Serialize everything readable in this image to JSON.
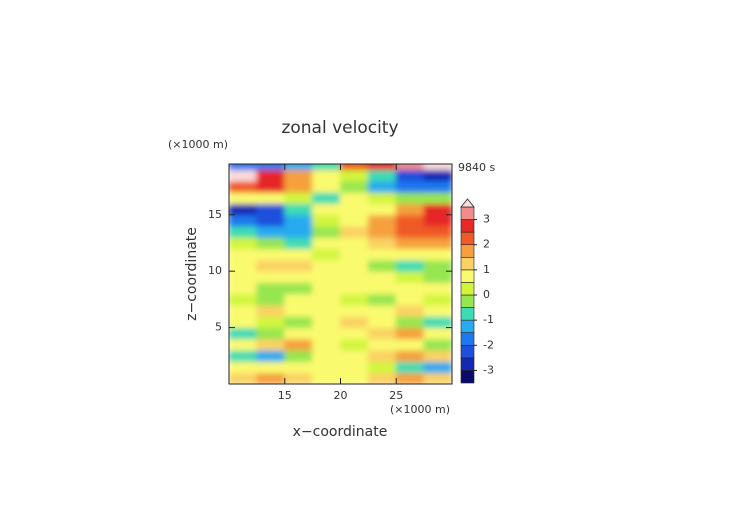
{
  "chart_data": {
    "type": "contour",
    "title": "zonal velocity",
    "time_label": "9840 s",
    "y_unit_label": "(×1000 m)",
    "x_unit_label": "(×1000 m)",
    "xlabel": "x−coordinate",
    "ylabel": "z−coordinate",
    "xlim": [
      10,
      30
    ],
    "ylim": [
      0,
      19.5
    ],
    "xticks": [
      15,
      20,
      25
    ],
    "yticks": [
      5,
      10,
      15
    ],
    "x": [
      11.25,
      13.75,
      16.25,
      18.75,
      21.25,
      23.75,
      26.25,
      28.75
    ],
    "z": [
      0.5,
      1.5,
      2.5,
      3.5,
      4.5,
      5.5,
      6.5,
      7.5,
      8.5,
      9.5,
      10.5,
      11.5,
      12.5,
      13.5,
      14.5,
      15.5,
      16.5,
      17.5,
      18.5,
      19.5
    ],
    "values": [
      [
        1,
        1.5,
        1,
        0.5,
        0.5,
        1,
        1.5,
        1
      ],
      [
        0.5,
        0.5,
        0.5,
        0.5,
        0.5,
        0,
        -1,
        -1.5
      ],
      [
        -1,
        -1.5,
        -0.5,
        0.5,
        0.5,
        1,
        1.5,
        1
      ],
      [
        0.5,
        1,
        1.5,
        0.5,
        0,
        0.5,
        0.5,
        -0.5
      ],
      [
        -1,
        -0.5,
        0.5,
        0.5,
        0.5,
        1,
        1.5,
        0.5
      ],
      [
        0.5,
        0,
        -0.5,
        0.5,
        1,
        0.5,
        -0.5,
        -1
      ],
      [
        0.5,
        1,
        0.5,
        0.5,
        0.5,
        0.5,
        1,
        0.5
      ],
      [
        0,
        -0.5,
        0.5,
        0.5,
        0,
        -0.5,
        0.5,
        0
      ],
      [
        0.5,
        -0.5,
        -0.5,
        0.5,
        0.5,
        0.5,
        0.5,
        0.5
      ],
      [
        0.5,
        0.5,
        0.5,
        0.5,
        0.5,
        0.5,
        0,
        -0.5
      ],
      [
        0.5,
        1,
        1,
        0.5,
        0.5,
        -0.5,
        -1,
        -0.5
      ],
      [
        0.5,
        0.5,
        0.5,
        0,
        0.5,
        0.5,
        0.5,
        0.5
      ],
      [
        0,
        -0.5,
        -1,
        0.5,
        0.5,
        1,
        1.5,
        1.5
      ],
      [
        -1,
        -1.5,
        -1.5,
        -0.5,
        1,
        1.5,
        2,
        2
      ],
      [
        -2,
        -2.5,
        -1.5,
        0,
        0.5,
        1.5,
        2,
        2.5
      ],
      [
        -3,
        -2.5,
        -1,
        0.5,
        0.5,
        0.5,
        1.5,
        2.5
      ],
      [
        0.5,
        0.5,
        0,
        -1,
        0.5,
        0,
        -0.5,
        -0.5
      ],
      [
        2,
        2.5,
        1.5,
        0.5,
        -0.5,
        -1.5,
        -2,
        -2
      ],
      [
        3.5,
        2.5,
        1.5,
        0.5,
        0,
        -1,
        -2.5,
        -3
      ],
      [
        -2,
        -2,
        -1.5,
        -1,
        2,
        2.5,
        3,
        3.5
      ]
    ],
    "levels": [
      -3.5,
      -3,
      -2.5,
      -2,
      -1.5,
      -1,
      -0.5,
      0,
      0.5,
      1,
      1.5,
      2,
      2.5,
      3,
      3.5
    ],
    "colors": [
      "#0a0a6e",
      "#1428b4",
      "#1e50dc",
      "#1e78f0",
      "#28aaf0",
      "#3cdcb4",
      "#96e650",
      "#d2f53c",
      "#fafa6e",
      "#fad264",
      "#f5a03c",
      "#f05a28",
      "#e62828",
      "#f08c8c",
      "#fadcdc"
    ],
    "colorbar_ticks": [
      -3,
      -2,
      -1,
      0,
      1,
      2,
      3
    ]
  }
}
